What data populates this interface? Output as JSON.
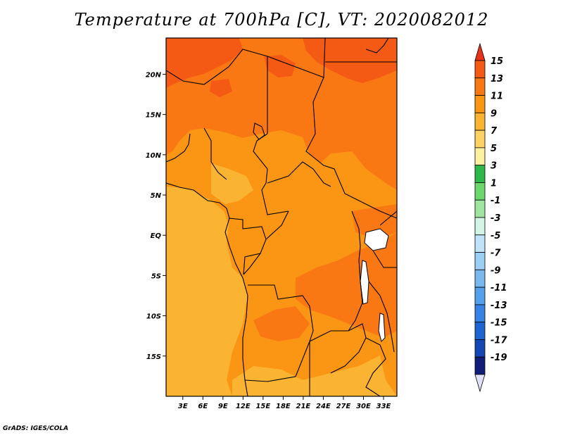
{
  "title": "Temperature at 700hPa [C], VT: 2020082012",
  "credit": "GrADS: IGES/COLA",
  "axes": {
    "lat_ticks": [
      {
        "value": 20,
        "label": "20N"
      },
      {
        "value": 15,
        "label": "15N"
      },
      {
        "value": 10,
        "label": "10N"
      },
      {
        "value": 5,
        "label": "5N"
      },
      {
        "value": 0,
        "label": "EQ"
      },
      {
        "value": -5,
        "label": "5S"
      },
      {
        "value": -10,
        "label": "10S"
      },
      {
        "value": -15,
        "label": "15S"
      }
    ],
    "lon_ticks": [
      {
        "value": 3,
        "label": "3E"
      },
      {
        "value": 6,
        "label": "6E"
      },
      {
        "value": 9,
        "label": "9E"
      },
      {
        "value": 12,
        "label": "12E"
      },
      {
        "value": 15,
        "label": "15E"
      },
      {
        "value": 18,
        "label": "18E"
      },
      {
        "value": 21,
        "label": "21E"
      },
      {
        "value": 24,
        "label": "24E"
      },
      {
        "value": 27,
        "label": "27E"
      },
      {
        "value": 30,
        "label": "30E"
      },
      {
        "value": 33,
        "label": "33E"
      }
    ],
    "lon_range": [
      0.5,
      35
    ],
    "lat_range": [
      -20,
      24.5
    ]
  },
  "colorbar": {
    "labels": [
      "15",
      "13",
      "11",
      "9",
      "7",
      "5",
      "3",
      "1",
      "-1",
      "-3",
      "-5",
      "-7",
      "-9",
      "-11",
      "-13",
      "-15",
      "-17",
      "-19"
    ],
    "colors_top_to_bottom": [
      "#e6331a",
      "#f55a14",
      "#fa7814",
      "#fb9614",
      "#fbb432",
      "#fcd264",
      "#fdf0a0",
      "#2fb84a",
      "#6cd86c",
      "#a0e6a0",
      "#d2f5e6",
      "#bfe4fa",
      "#9ccff5",
      "#7ab8f0",
      "#55a0eb",
      "#3782e6",
      "#1e64d2",
      "#1446b4",
      "#0f1e78",
      "#e1e1fa"
    ]
  },
  "map_colors": {
    "t7_9": "#fbb432",
    "t9_11": "#fb9614",
    "t11_13": "#fa7814",
    "t13_15": "#f55a14",
    "lake": "#ffffff",
    "border": "#000000"
  }
}
